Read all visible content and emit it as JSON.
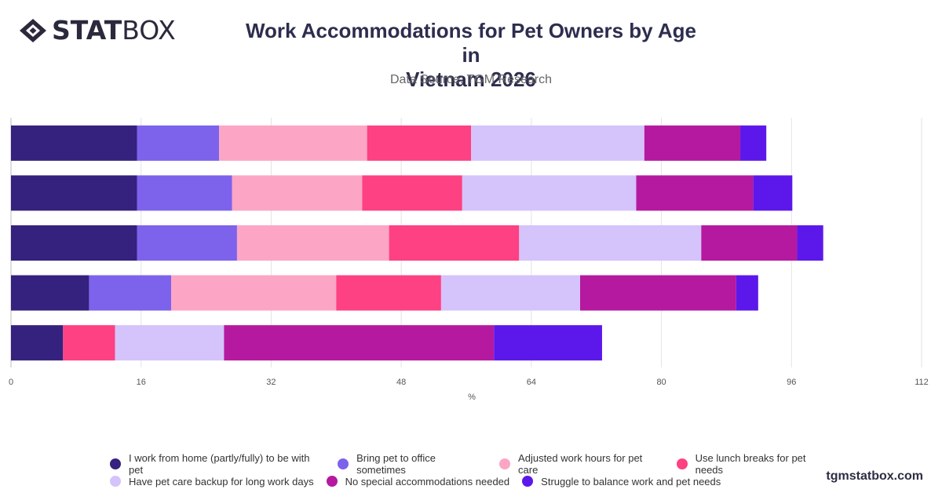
{
  "brand": {
    "logo_bold": "STAT",
    "logo_light": "BOX",
    "site": "tgmstatbox.com"
  },
  "header": {
    "title_line1": "Work Accommodations for Pet Owners by Age in",
    "title_line2": "Vietnam 2026",
    "subtitle": "Data Source: TGM Research"
  },
  "chart_data": {
    "type": "bar",
    "orientation": "horizontal",
    "stacked": true,
    "title": "Work Accommodations for Pet Owners by Age in Vietnam 2026",
    "subtitle": "Data Source: TGM Research",
    "xlabel": "%",
    "ylabel": "",
    "xlim": [
      0,
      112
    ],
    "xticks": [
      0,
      16,
      32,
      48,
      64,
      80,
      96,
      112
    ],
    "grid": true,
    "legend_position": "bottom",
    "categories": [
      "",
      "",
      "",
      "",
      ""
    ],
    "series": [
      {
        "name": "I work from home (partly/fully) to be with pet",
        "color": "#35217e",
        "values": [
          15.5,
          15.5,
          15.5,
          9.6,
          6.4
        ]
      },
      {
        "name": "Bring pet to office sometimes",
        "color": "#7d62ec",
        "values": [
          10.1,
          11.7,
          12.3,
          10.1,
          0
        ]
      },
      {
        "name": "Adjusted work hours for pet care",
        "color": "#fca5c5",
        "values": [
          18.2,
          16.0,
          18.7,
          20.3,
          0
        ]
      },
      {
        "name": "Use lunch breaks for pet needs",
        "color": "#fd4183",
        "values": [
          12.8,
          12.3,
          16.0,
          12.9,
          6.4
        ]
      },
      {
        "name": "Have pet care backup for long work days",
        "color": "#d5c3fb",
        "values": [
          21.3,
          21.4,
          22.4,
          17.1,
          13.4
        ]
      },
      {
        "name": "No special accommodations needed",
        "color": "#b5199f",
        "values": [
          11.8,
          14.4,
          11.8,
          19.2,
          33.2
        ]
      },
      {
        "name": "Struggle to balance work and pet needs",
        "color": "#5c18ea",
        "values": [
          3.2,
          4.8,
          3.2,
          2.7,
          13.3
        ]
      }
    ]
  }
}
